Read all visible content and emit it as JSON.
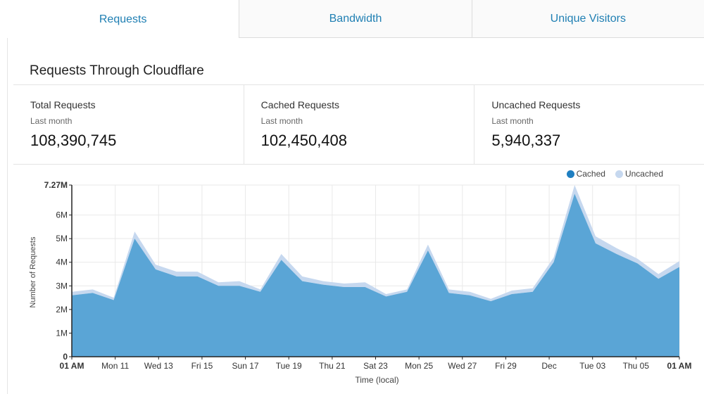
{
  "tabs": [
    {
      "label": "Requests",
      "active": true
    },
    {
      "label": "Bandwidth",
      "active": false
    },
    {
      "label": "Unique Visitors",
      "active": false
    }
  ],
  "section_title": "Requests Through Cloudflare",
  "stats": [
    {
      "label": "Total Requests",
      "period": "Last month",
      "value": "108,390,745"
    },
    {
      "label": "Cached Requests",
      "period": "Last month",
      "value": "102,450,408"
    },
    {
      "label": "Uncached Requests",
      "period": "Last month",
      "value": "5,940,337"
    }
  ],
  "colors": {
    "cached": "#5aa5d6",
    "cached_dot": "#1f7fc1",
    "uncached": "#c6d8ef",
    "grid": "#e9e9e9",
    "axis": "#222222"
  },
  "chart_data": {
    "type": "area",
    "stacked": true,
    "legend_position": "top-right",
    "xlabel": "Time (local)",
    "ylabel": "Number of Requests",
    "ylim": [
      0,
      7.27
    ],
    "y_unit": "M",
    "y_ticks": [
      "0",
      "1M",
      "2M",
      "3M",
      "4M",
      "5M",
      "6M",
      "7.27M"
    ],
    "x_ticks": [
      "01 AM",
      "Mon 11",
      "Wed 13",
      "Fri 15",
      "Sun 17",
      "Tue 19",
      "Thu 21",
      "Sat 23",
      "Mon 25",
      "Wed 27",
      "Fri 29",
      "Dec",
      "Tue 03",
      "Thu 05",
      "01 AM"
    ],
    "x_days": [
      0,
      1,
      2,
      3,
      4,
      5,
      6,
      7,
      8,
      9,
      10,
      11,
      12,
      13,
      14,
      15,
      16,
      17,
      18,
      19,
      20,
      21,
      22,
      23,
      24,
      25,
      26,
      27,
      28,
      29
    ],
    "series": [
      {
        "name": "Cached",
        "values": [
          2.6,
          2.7,
          2.4,
          5.0,
          3.7,
          3.4,
          3.4,
          3.0,
          3.0,
          2.75,
          4.1,
          3.2,
          3.05,
          2.95,
          2.95,
          2.55,
          2.75,
          4.5,
          2.7,
          2.6,
          2.35,
          2.65,
          2.75,
          4.0,
          6.9,
          4.8,
          4.35,
          3.95,
          3.3,
          3.8
        ]
      },
      {
        "name": "Uncached",
        "values": [
          0.15,
          0.15,
          0.1,
          0.3,
          0.2,
          0.2,
          0.2,
          0.15,
          0.2,
          0.1,
          0.25,
          0.2,
          0.15,
          0.15,
          0.2,
          0.1,
          0.1,
          0.25,
          0.15,
          0.15,
          0.1,
          0.15,
          0.15,
          0.2,
          0.37,
          0.3,
          0.25,
          0.2,
          0.2,
          0.25
        ]
      }
    ]
  }
}
